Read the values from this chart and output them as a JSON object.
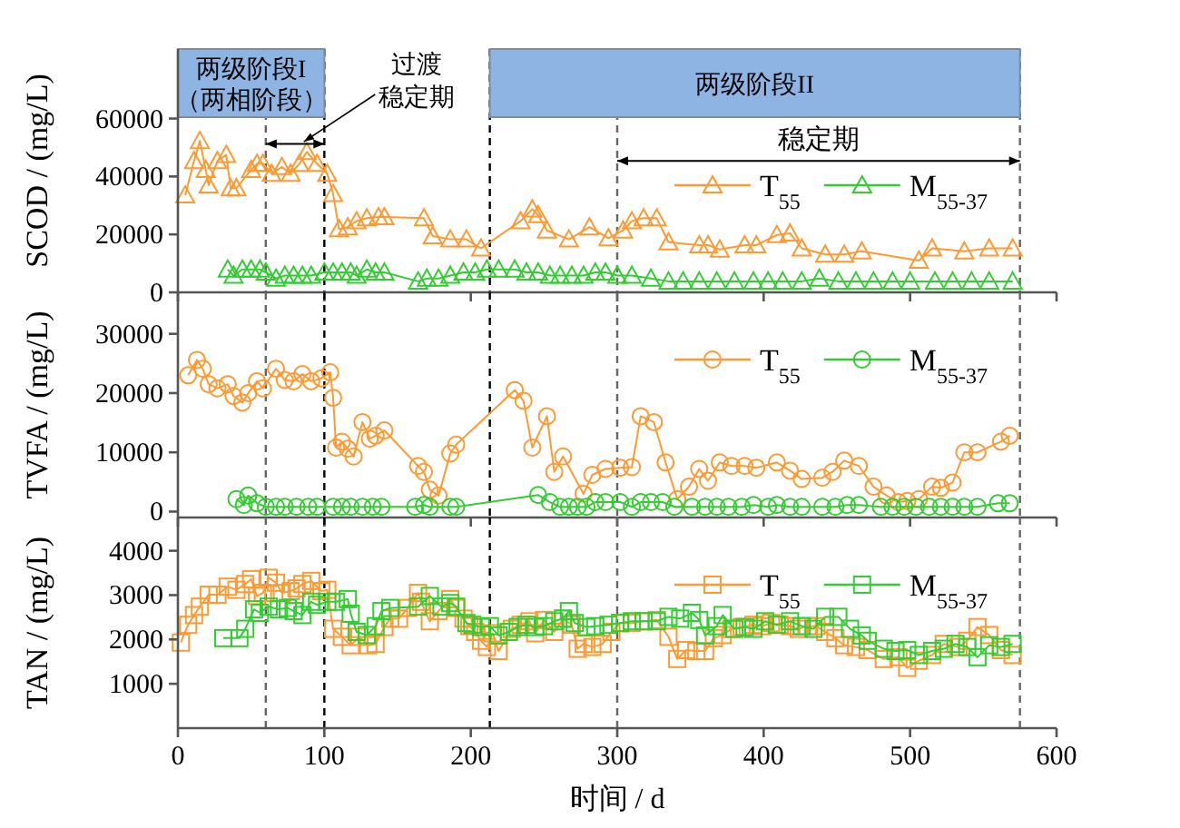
{
  "chart_data": [
    {
      "type": "line",
      "ylabel": "SCOD / (mg/L)",
      "xlim": [
        0,
        600
      ],
      "xticks": [
        0,
        100,
        200,
        300,
        400,
        500,
        600
      ],
      "ylim": [
        0,
        84000
      ],
      "yticks": [
        0,
        20000,
        40000,
        60000
      ],
      "tick_labels": "y",
      "marker": "triangle",
      "legend": "right",
      "series": [
        {
          "name": "T$_{55}$",
          "color": "#ff9933",
          "x": [
            5,
            11,
            15,
            19,
            21,
            27,
            33,
            36,
            40,
            50,
            54,
            58,
            64,
            71,
            77,
            83,
            88,
            95,
            102,
            106,
            110,
            116,
            122,
            129,
            137,
            141,
            168,
            174,
            186,
            197,
            207,
            234,
            242,
            246,
            252,
            267,
            281,
            294,
            304,
            310,
            318,
            327,
            335,
            356,
            362,
            370,
            387,
            395,
            409,
            418,
            426,
            442,
            455,
            467,
            506,
            515,
            537,
            554,
            570
          ],
          "values": [
            33500,
            45400,
            52300,
            42300,
            37000,
            45400,
            47500,
            36000,
            36000,
            42300,
            44400,
            44400,
            41000,
            43300,
            41000,
            44400,
            48500,
            44400,
            41000,
            34000,
            21900,
            22500,
            24600,
            25600,
            26000,
            26000,
            25600,
            19400,
            18300,
            18300,
            15200,
            24600,
            28700,
            26700,
            21400,
            18300,
            22500,
            18700,
            21400,
            24600,
            25600,
            25600,
            17300,
            16300,
            16300,
            14800,
            16300,
            16300,
            19800,
            20400,
            15200,
            13100,
            13100,
            14200,
            11000,
            15200,
            14200,
            15200,
            15200
          ]
        },
        {
          "name": "M$_{55-37}$",
          "color": "#33cc33",
          "x": [
            34,
            38,
            44,
            50,
            56,
            60,
            67,
            73,
            79,
            85,
            91,
            100,
            106,
            112,
            118,
            122,
            129,
            135,
            141,
            164,
            170,
            178,
            186,
            195,
            203,
            211,
            219,
            230,
            238,
            246,
            254,
            261,
            269,
            277,
            285,
            292,
            300,
            310,
            323,
            335,
            345,
            356,
            368,
            380,
            393,
            403,
            413,
            426,
            438,
            451,
            463,
            475,
            488,
            500,
            517,
            529,
            542,
            554,
            570
          ],
          "values": [
            7900,
            5800,
            7900,
            7900,
            7900,
            6900,
            4800,
            5800,
            5800,
            5800,
            5800,
            6900,
            6900,
            6900,
            6900,
            5800,
            7900,
            6900,
            6900,
            3800,
            4800,
            4800,
            5800,
            6900,
            6900,
            7900,
            7900,
            7900,
            6900,
            6900,
            5800,
            5800,
            5800,
            5800,
            6900,
            6900,
            5800,
            5800,
            4800,
            3800,
            3800,
            3800,
            3800,
            3800,
            3800,
            3800,
            3800,
            3800,
            4800,
            3800,
            3800,
            3800,
            3800,
            3800,
            3800,
            3800,
            3800,
            3800,
            3800
          ]
        }
      ],
      "ref_lines": [
        {
          "axis": "x",
          "value": 60,
          "color": "#666666",
          "line_style": "dashed"
        },
        {
          "axis": "x",
          "value": 100,
          "color": "#000000",
          "line_style": "dashed"
        },
        {
          "axis": "x",
          "value": 213,
          "color": "#000000",
          "line_style": "dashed"
        },
        {
          "axis": "x",
          "value": 300,
          "color": "#666666",
          "line_style": "dashed"
        },
        {
          "axis": "x",
          "value": 575,
          "color": "#666666",
          "line_style": "dashed"
        }
      ],
      "bands": [
        {
          "axis": "x",
          "from": 0,
          "to": 100,
          "label": "两级阶段I（两相阶段）",
          "color": "#8eb4e3"
        },
        {
          "axis": "x",
          "from": 213,
          "to": 575,
          "label": "两级阶段II",
          "color": "#8eb4e3"
        }
      ],
      "annotations": [
        {
          "text": "过渡稳定期",
          "x": 86,
          "y": 52000
        },
        "稳定期"
      ]
    },
    {
      "type": "line",
      "ylabel": "TVFA / (mg/L)",
      "xlim": [
        0,
        600
      ],
      "xticks": [
        0,
        100,
        200,
        300,
        400,
        500,
        600
      ],
      "ylim": [
        -1000,
        37000
      ],
      "yticks": [
        0,
        10000,
        20000,
        30000
      ],
      "tick_labels": "y",
      "marker": "circle",
      "legend": "top right",
      "series": [
        {
          "name": "T$_{55}$",
          "color": "#ff9933",
          "x": [
            7,
            13,
            17,
            21,
            27,
            34,
            38,
            44,
            48,
            54,
            58,
            67,
            73,
            79,
            85,
            91,
            98,
            104,
            106,
            108,
            112,
            116,
            120,
            126,
            131,
            135,
            141,
            164,
            168,
            172,
            178,
            186,
            190,
            230,
            236,
            242,
            252,
            257,
            263,
            277,
            283,
            292,
            302,
            310,
            316,
            325,
            333,
            341,
            349,
            356,
            362,
            370,
            378,
            387,
            395,
            409,
            418,
            426,
            440,
            447,
            455,
            465,
            475,
            484,
            492,
            498,
            506,
            515,
            521,
            529,
            537,
            546,
            562,
            568
          ],
          "values": [
            23000,
            25600,
            24100,
            21500,
            20800,
            21500,
            19500,
            18400,
            20000,
            22000,
            20800,
            24100,
            22200,
            22000,
            23200,
            22000,
            22500,
            23500,
            19200,
            10800,
            11800,
            10600,
            9300,
            15100,
            12300,
            12800,
            13700,
            7700,
            6700,
            3700,
            2700,
            9800,
            11300,
            20500,
            18700,
            10800,
            16100,
            6700,
            9300,
            3000,
            6200,
            7200,
            7400,
            7500,
            16100,
            15100,
            8300,
            2100,
            4200,
            7200,
            5200,
            8300,
            7700,
            7700,
            7400,
            8300,
            6900,
            5500,
            5700,
            6700,
            8600,
            7700,
            4200,
            2700,
            1600,
            1800,
            2100,
            4200,
            4000,
            4900,
            10000,
            10000,
            11800,
            12800
          ]
        },
        {
          "name": "M$_{55-37}$",
          "color": "#33cc33",
          "x": [
            40,
            45,
            48,
            54,
            60,
            67,
            73,
            81,
            89,
            95,
            106,
            112,
            118,
            126,
            133,
            139,
            162,
            168,
            172,
            186,
            190,
            246,
            254,
            261,
            267,
            273,
            279,
            285,
            292,
            302,
            310,
            316,
            323,
            331,
            339,
            351,
            360,
            368,
            376,
            385,
            393,
            403,
            409,
            418,
            426,
            440,
            449,
            457,
            465,
            480,
            488,
            496,
            504,
            513,
            521,
            529,
            537,
            546,
            560,
            568
          ],
          "values": [
            2100,
            1100,
            2700,
            1400,
            800,
            800,
            800,
            800,
            800,
            800,
            800,
            800,
            800,
            800,
            800,
            800,
            800,
            1100,
            800,
            800,
            800,
            2800,
            1600,
            800,
            800,
            800,
            800,
            1600,
            1600,
            1600,
            800,
            1600,
            1600,
            1600,
            800,
            800,
            800,
            800,
            800,
            800,
            1100,
            800,
            1100,
            800,
            800,
            800,
            800,
            1100,
            1100,
            800,
            800,
            800,
            800,
            800,
            800,
            800,
            800,
            800,
            1400,
            1400
          ]
        }
      ],
      "ref_lines": [
        {
          "axis": "x",
          "value": 60,
          "color": "#666666",
          "line_style": "dashed"
        },
        {
          "axis": "x",
          "value": 100,
          "color": "#000000",
          "line_style": "dashed"
        },
        {
          "axis": "x",
          "value": 213,
          "color": "#000000",
          "line_style": "dashed"
        },
        {
          "axis": "x",
          "value": 300,
          "color": "#666666",
          "line_style": "dashed"
        },
        {
          "axis": "x",
          "value": 575,
          "color": "#666666",
          "line_style": "dashed"
        }
      ]
    },
    {
      "type": "line",
      "xlabel": "时间 / d",
      "ylabel": "TAN / (mg/L)",
      "xlim": [
        0,
        600
      ],
      "xticks": [
        0,
        100,
        200,
        300,
        400,
        500,
        600
      ],
      "ylim": [
        0,
        4750
      ],
      "yticks": [
        1000,
        2000,
        3000,
        4000
      ],
      "marker": "square",
      "legend": "top right",
      "series": [
        {
          "name": "T$_{55}$",
          "color": "#ff9933",
          "x": [
            2,
            7,
            11,
            15,
            21,
            27,
            34,
            40,
            46,
            50,
            54,
            58,
            62,
            67,
            71,
            77,
            81,
            85,
            91,
            98,
            102,
            106,
            112,
            118,
            124,
            130,
            135,
            141,
            145,
            151,
            157,
            164,
            166,
            172,
            178,
            186,
            190,
            195,
            199,
            203,
            207,
            211,
            215,
            219,
            228,
            234,
            240,
            244,
            250,
            257,
            263,
            269,
            273,
            277,
            283,
            290,
            296,
            302,
            310,
            318,
            327,
            335,
            341,
            347,
            354,
            360,
            366,
            372,
            378,
            385,
            393,
            399,
            405,
            411,
            418,
            424,
            430,
            436,
            442,
            449,
            455,
            463,
            471,
            482,
            492,
            498,
            506,
            515,
            523,
            533,
            539,
            546,
            554,
            562,
            570
          ],
          "values": [
            1930,
            2330,
            2550,
            2740,
            3010,
            3010,
            3190,
            3120,
            3250,
            3360,
            2980,
            3050,
            3390,
            3280,
            3050,
            3090,
            3150,
            3250,
            3320,
            3090,
            3120,
            2240,
            2060,
            1870,
            2060,
            1870,
            1900,
            2280,
            2470,
            2470,
            2710,
            3050,
            2850,
            2410,
            2640,
            2910,
            2710,
            2470,
            2300,
            2170,
            1970,
            1830,
            2140,
            1740,
            2240,
            2330,
            2410,
            2140,
            2440,
            2170,
            2470,
            2330,
            1790,
            1900,
            1830,
            1900,
            2170,
            2370,
            2370,
            2410,
            2440,
            2060,
            1560,
            1760,
            1740,
            1740,
            2030,
            2100,
            2240,
            2280,
            2330,
            2300,
            2370,
            2330,
            2300,
            2240,
            2300,
            2300,
            2170,
            2030,
            1870,
            1830,
            1760,
            1560,
            1600,
            1360,
            1520,
            1650,
            1900,
            1830,
            1970,
            2280,
            2100,
            1760,
            1650
          ]
        },
        {
          "name": "M$_{55-37}$",
          "color": "#33cc33",
          "x": [
            31,
            42,
            46,
            52,
            56,
            62,
            69,
            75,
            79,
            85,
            91,
            95,
            102,
            108,
            116,
            118,
            122,
            129,
            135,
            139,
            145,
            164,
            172,
            180,
            186,
            190,
            197,
            201,
            207,
            213,
            219,
            226,
            232,
            238,
            244,
            250,
            257,
            263,
            267,
            271,
            279,
            285,
            294,
            302,
            310,
            318,
            327,
            335,
            343,
            351,
            356,
            360,
            368,
            372,
            380,
            387,
            393,
            401,
            409,
            418,
            426,
            434,
            442,
            451,
            459,
            467,
            471,
            482,
            490,
            498,
            506,
            515,
            523,
            531,
            539,
            546,
            554,
            562,
            570
          ],
          "values": [
            2030,
            2030,
            2240,
            2680,
            2600,
            2740,
            2680,
            2710,
            2640,
            2550,
            2850,
            2780,
            2850,
            2850,
            2910,
            2580,
            2170,
            2100,
            2300,
            2640,
            2710,
            2740,
            2980,
            2740,
            2820,
            2740,
            2370,
            2330,
            2280,
            2300,
            2090,
            2170,
            2280,
            2330,
            2280,
            2300,
            2410,
            2470,
            2640,
            2370,
            2280,
            2300,
            2330,
            2370,
            2410,
            2410,
            2410,
            2510,
            2470,
            2600,
            2440,
            2090,
            2300,
            2550,
            2240,
            2280,
            2240,
            2410,
            2330,
            2410,
            2300,
            2240,
            2510,
            2510,
            2240,
            2090,
            1970,
            1790,
            1740,
            1760,
            1650,
            1740,
            1790,
            1900,
            1830,
            1600,
            1870,
            1830,
            1900
          ]
        }
      ],
      "ref_lines": [
        {
          "axis": "x",
          "value": 60,
          "color": "#666666",
          "line_style": "dashed"
        },
        {
          "axis": "x",
          "value": 100,
          "color": "#000000",
          "line_style": "dashed"
        },
        {
          "axis": "x",
          "value": 213,
          "color": "#000000",
          "line_style": "dashed"
        },
        {
          "axis": "x",
          "value": 300,
          "color": "#666666",
          "line_style": "dashed"
        },
        {
          "axis": "x",
          "value": 575,
          "color": "#666666",
          "line_style": "dashed"
        }
      ]
    }
  ]
}
